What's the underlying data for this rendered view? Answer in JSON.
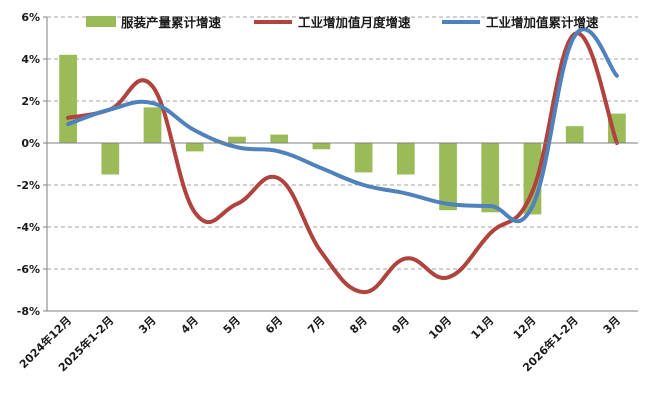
{
  "chart_data": {
    "type": "bar",
    "categories": [
      "2024年12月",
      "2025年1-2月",
      "3月",
      "4月",
      "5月",
      "6月",
      "7月",
      "8月",
      "9月",
      "10月",
      "11月",
      "12月",
      "2026年1-2月",
      "3月"
    ],
    "ylim": [
      -8,
      6
    ],
    "yticks": [
      6,
      4,
      2,
      0,
      -2,
      -4,
      -6,
      -8
    ],
    "ytick_labels": [
      "6%",
      "4%",
      "2%",
      "0%",
      "-2%",
      "-4%",
      "-6%",
      "-8%"
    ],
    "grid": "horizontal-dashed",
    "legend_position": "top",
    "series": [
      {
        "name": "服装产量累计增速",
        "type": "bar",
        "color": "#9bbb59",
        "values": [
          4.2,
          -1.5,
          1.7,
          -0.4,
          0.3,
          0.4,
          -0.3,
          -1.4,
          -1.5,
          -3.2,
          -3.3,
          -3.4,
          0.8,
          1.4
        ]
      },
      {
        "name": "工业增加值月度增速",
        "type": "line",
        "color": "#b0433d",
        "values": [
          1.2,
          1.6,
          2.7,
          -3.3,
          -2.9,
          -1.7,
          -5.2,
          -7.1,
          -5.5,
          -6.4,
          -4.3,
          -2.3,
          5.2,
          0.0
        ]
      },
      {
        "name": "工业增加值累计增速",
        "type": "line",
        "color": "#4f81bd",
        "values": [
          0.9,
          1.6,
          1.9,
          0.6,
          -0.2,
          -0.4,
          -1.2,
          -2.0,
          -2.4,
          -2.9,
          -3.0,
          -3.0,
          5.1,
          3.2
        ]
      }
    ]
  }
}
